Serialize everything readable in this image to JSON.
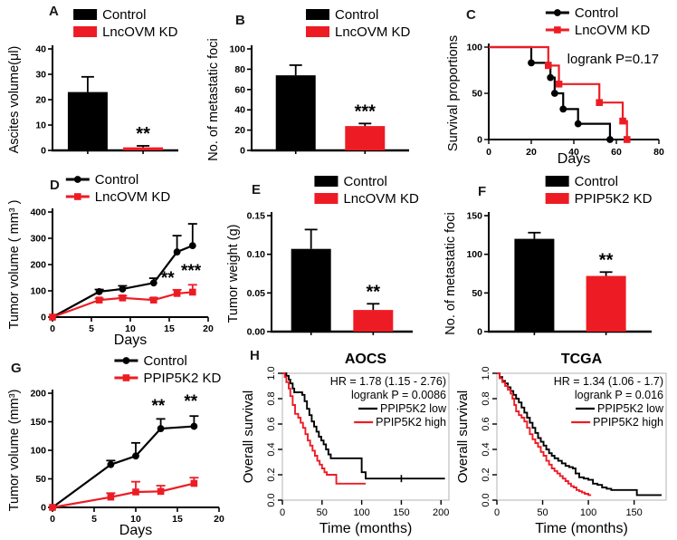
{
  "panels": [
    {
      "label": "A"
    },
    {
      "label": "B"
    },
    {
      "label": "C"
    },
    {
      "label": "D"
    },
    {
      "label": "E"
    },
    {
      "label": "F"
    },
    {
      "label": "G"
    },
    {
      "label": "H"
    },
    {
      "label": ""
    }
  ],
  "colors": {
    "control": "#000000",
    "knockdown": "#ed1c24"
  },
  "chart_data": [
    {
      "panel": "A",
      "type": "bar",
      "ylabel": "Ascites volume(μl)",
      "ylim": [
        0,
        40
      ],
      "yticks": [
        0,
        10,
        20,
        30,
        40
      ],
      "categories": [
        "Control",
        "LncOVM KD"
      ],
      "values": [
        23,
        1.2
      ],
      "errors": [
        6,
        0.6
      ],
      "bar_colors": [
        "#000000",
        "#ed1c24"
      ],
      "significance": [
        {
          "index": 1,
          "text": "**"
        }
      ],
      "legend_position": "top",
      "legend_x": 0.34
    },
    {
      "panel": "B",
      "type": "bar",
      "ylabel": "No. of metastatic foci",
      "ylim": [
        0,
        100
      ],
      "yticks": [
        0,
        20,
        40,
        60,
        80,
        100
      ],
      "categories": [
        "Control",
        "LncOVM KD"
      ],
      "values": [
        74,
        24
      ],
      "errors": [
        10,
        2.5
      ],
      "bar_colors": [
        "#000000",
        "#ed1c24"
      ],
      "significance": [
        {
          "index": 1,
          "text": "***"
        }
      ],
      "legend_position": "top",
      "legend_x": 0.44
    },
    {
      "panel": "C",
      "type": "step",
      "style": "graphpad",
      "xlabel": "Days",
      "ylabel": "Survival proportions",
      "xlim": [
        0,
        80
      ],
      "xticks": [
        0,
        20,
        40,
        60,
        80
      ],
      "ylim": [
        0,
        100
      ],
      "yticks": [
        0,
        50,
        100
      ],
      "annotation": "logrank P=0.17",
      "series": [
        {
          "name": "Control",
          "color": "#000000",
          "marker": "circle",
          "points": [
            [
              0,
              100
            ],
            [
              20,
              83
            ],
            [
              29,
              67
            ],
            [
              31,
              50
            ],
            [
              35,
              33
            ],
            [
              42,
              17
            ],
            [
              57,
              0
            ]
          ]
        },
        {
          "name": "LncOVM KD",
          "color": "#ed1c24",
          "marker": "square",
          "points": [
            [
              0,
              100
            ],
            [
              28,
              80
            ],
            [
              33,
              60
            ],
            [
              52,
              40
            ],
            [
              63,
              20
            ],
            [
              65,
              0
            ]
          ]
        }
      ],
      "legend_position": "top",
      "legend_x": 0.44
    },
    {
      "panel": "D",
      "type": "line",
      "xlabel": "Days",
      "ylabel": "Tumor volume ( mm³ )",
      "xlim": [
        0,
        20
      ],
      "xticks": [
        0,
        5,
        10,
        15,
        20
      ],
      "ylim": [
        0,
        400
      ],
      "yticks": [
        0,
        100,
        200,
        300,
        400
      ],
      "series": [
        {
          "name": "Control",
          "color": "#000000",
          "marker": "circle",
          "x": [
            0,
            6,
            9,
            13,
            16,
            18
          ],
          "y": [
            0,
            97,
            107,
            130,
            248,
            272
          ],
          "err": [
            0,
            8,
            12,
            18,
            62,
            83
          ]
        },
        {
          "name": "LncOVM KD",
          "color": "#ed1c24",
          "marker": "square",
          "x": [
            0,
            6,
            9,
            13,
            16,
            18
          ],
          "y": [
            0,
            65,
            73,
            65,
            90,
            95
          ],
          "err": [
            0,
            6,
            8,
            8,
            14,
            28
          ]
        }
      ],
      "annotations": [
        {
          "x": 14.8,
          "y": 128,
          "text": "**"
        },
        {
          "x": 17.8,
          "y": 155,
          "text": "***"
        }
      ],
      "legend_position": "top",
      "legend_x": 0.27
    },
    {
      "panel": "E",
      "type": "bar",
      "ylabel": "Tumor weight (g)",
      "ylim": [
        0,
        0.15
      ],
      "yticks": [
        0,
        0.05,
        0.1,
        0.15
      ],
      "ytick_decimals": 2,
      "categories": [
        "Control",
        "LncOVM KD"
      ],
      "values": [
        0.107,
        0.028
      ],
      "errors": [
        0.025,
        0.008
      ],
      "bar_colors": [
        "#000000",
        "#ed1c24"
      ],
      "significance": [
        {
          "index": 1,
          "text": "**"
        }
      ],
      "legend_position": "top",
      "legend_x": 0.42
    },
    {
      "panel": "F",
      "type": "bar",
      "ylabel": "No. of metastatic foci",
      "ylim": [
        0,
        150
      ],
      "yticks": [
        0,
        50,
        100,
        150
      ],
      "categories": [
        "Control",
        "PPIP5K2 KD"
      ],
      "values": [
        120,
        72
      ],
      "errors": [
        8,
        5
      ],
      "bar_colors": [
        "#000000",
        "#ed1c24"
      ],
      "significance": [
        {
          "index": 1,
          "text": "**"
        }
      ],
      "legend_position": "top",
      "legend_x": 0.44
    },
    {
      "panel": "G",
      "type": "line",
      "xlabel": "Days",
      "ylabel": "Tumor volume (mm³)",
      "xlim": [
        0,
        20
      ],
      "xticks": [
        0,
        5,
        10,
        15,
        20
      ],
      "ylim": [
        0,
        200
      ],
      "yticks": [
        0,
        50,
        100,
        150,
        200
      ],
      "series": [
        {
          "name": "Control",
          "color": "#000000",
          "marker": "circle",
          "x": [
            0,
            7,
            10,
            13,
            17
          ],
          "y": [
            0,
            75,
            90,
            138,
            142
          ],
          "err": [
            0,
            7,
            23,
            17,
            18
          ]
        },
        {
          "name": "PPIP5K2 KD",
          "color": "#ed1c24",
          "marker": "square",
          "x": [
            0,
            7,
            10,
            13,
            17
          ],
          "y": [
            0,
            18,
            27,
            28,
            42
          ],
          "err": [
            0,
            7,
            18,
            10,
            10
          ]
        }
      ],
      "annotations": [
        {
          "x": 12.7,
          "y": 168,
          "text": "**"
        },
        {
          "x": 16.6,
          "y": 176,
          "text": "**"
        }
      ],
      "legend_position": "top",
      "legend_x": 0.47
    },
    {
      "panel": "H",
      "type": "step",
      "style": "r",
      "title": "AOCS",
      "xlabel": "Time (months)",
      "ylabel": "Overall survival",
      "xlim": [
        0,
        210
      ],
      "xticks": [
        0,
        50,
        100,
        150,
        200
      ],
      "ylim": [
        0,
        1
      ],
      "yticks": [
        0,
        0.2,
        0.4,
        0.6,
        0.8,
        1
      ],
      "ytick_decimals": 1,
      "annotations": [
        "HR = 1.78 (1.15 - 2.76)",
        "logrank P = 0.0086"
      ],
      "series": [
        {
          "name": "PPIP5K2 low",
          "color": "#000000",
          "points": [
            [
              0,
              1
            ],
            [
              5,
              0.98
            ],
            [
              8,
              0.95
            ],
            [
              10,
              0.92
            ],
            [
              13,
              0.88
            ],
            [
              15,
              0.85
            ],
            [
              25,
              0.83
            ],
            [
              28,
              0.78
            ],
            [
              31,
              0.72
            ],
            [
              34,
              0.67
            ],
            [
              37,
              0.62
            ],
            [
              40,
              0.58
            ],
            [
              43,
              0.54
            ],
            [
              46,
              0.5
            ],
            [
              49,
              0.47
            ],
            [
              52,
              0.44
            ],
            [
              55,
              0.4
            ],
            [
              58,
              0.36
            ],
            [
              61,
              0.33
            ],
            [
              97,
              0.33
            ],
            [
              100,
              0.22
            ],
            [
              105,
              0.17
            ],
            [
              205,
              0.17
            ]
          ],
          "censors": [
            [
              150,
              0.17
            ]
          ]
        },
        {
          "name": "PPIP5K2 high",
          "color": "#ed1c24",
          "points": [
            [
              0,
              1
            ],
            [
              3,
              0.97
            ],
            [
              5,
              0.93
            ],
            [
              8,
              0.88
            ],
            [
              10,
              0.82
            ],
            [
              13,
              0.75
            ],
            [
              16,
              0.68
            ],
            [
              20,
              0.65
            ],
            [
              23,
              0.61
            ],
            [
              26,
              0.57
            ],
            [
              29,
              0.52
            ],
            [
              32,
              0.47
            ],
            [
              35,
              0.43
            ],
            [
              38,
              0.39
            ],
            [
              41,
              0.35
            ],
            [
              44,
              0.31
            ],
            [
              47,
              0.28
            ],
            [
              50,
              0.25
            ],
            [
              53,
              0.22
            ],
            [
              56,
              0.2
            ],
            [
              68,
              0.13
            ],
            [
              105,
              0.13
            ]
          ]
        }
      ]
    },
    {
      "panel": "H",
      "type": "step",
      "style": "r",
      "title": "TCGA",
      "xlabel": "Time (months)",
      "ylabel": "Overall survival",
      "xlim": [
        0,
        185
      ],
      "xticks": [
        0,
        50,
        100,
        150
      ],
      "ylim": [
        0,
        1
      ],
      "yticks": [
        0,
        0.2,
        0.4,
        0.6,
        0.8,
        1
      ],
      "ytick_decimals": 1,
      "annotations": [
        "HR = 1.34 (1.06 - 1.7)",
        "logrank P = 0.016"
      ],
      "series": [
        {
          "name": "PPIP5K2 low",
          "color": "#000000",
          "points": [
            [
              0,
              1
            ],
            [
              3,
              0.97
            ],
            [
              6,
              0.94
            ],
            [
              9,
              0.92
            ],
            [
              12,
              0.89
            ],
            [
              15,
              0.86
            ],
            [
              18,
              0.83
            ],
            [
              21,
              0.8
            ],
            [
              24,
              0.77
            ],
            [
              27,
              0.73
            ],
            [
              30,
              0.69
            ],
            [
              33,
              0.65
            ],
            [
              36,
              0.61
            ],
            [
              39,
              0.57
            ],
            [
              42,
              0.53
            ],
            [
              45,
              0.49
            ],
            [
              48,
              0.46
            ],
            [
              51,
              0.43
            ],
            [
              54,
              0.4
            ],
            [
              57,
              0.37
            ],
            [
              60,
              0.35
            ],
            [
              63,
              0.33
            ],
            [
              67,
              0.31
            ],
            [
              71,
              0.29
            ],
            [
              75,
              0.27
            ],
            [
              79,
              0.26
            ],
            [
              83,
              0.25
            ],
            [
              86,
              0.21
            ],
            [
              90,
              0.18
            ],
            [
              95,
              0.17
            ],
            [
              100,
              0.16
            ],
            [
              105,
              0.13
            ],
            [
              110,
              0.12
            ],
            [
              115,
              0.1
            ],
            [
              120,
              0.09
            ],
            [
              125,
              0.08
            ],
            [
              150,
              0.08
            ],
            [
              153,
              0.04
            ],
            [
              180,
              0.04
            ]
          ]
        },
        {
          "name": "PPIP5K2 high",
          "color": "#ed1c24",
          "points": [
            [
              0,
              1
            ],
            [
              3,
              0.96
            ],
            [
              6,
              0.93
            ],
            [
              9,
              0.9
            ],
            [
              12,
              0.87
            ],
            [
              15,
              0.84
            ],
            [
              17,
              0.8
            ],
            [
              19,
              0.75
            ],
            [
              21,
              0.7
            ],
            [
              24,
              0.67
            ],
            [
              27,
              0.65
            ],
            [
              30,
              0.62
            ],
            [
              33,
              0.57
            ],
            [
              36,
              0.52
            ],
            [
              39,
              0.48
            ],
            [
              42,
              0.45
            ],
            [
              45,
              0.42
            ],
            [
              48,
              0.38
            ],
            [
              51,
              0.35
            ],
            [
              54,
              0.31
            ],
            [
              57,
              0.28
            ],
            [
              60,
              0.25
            ],
            [
              63,
              0.23
            ],
            [
              66,
              0.21
            ],
            [
              69,
              0.19
            ],
            [
              72,
              0.17
            ],
            [
              75,
              0.15
            ],
            [
              78,
              0.13
            ],
            [
              81,
              0.11
            ],
            [
              84,
              0.1
            ],
            [
              87,
              0.08
            ],
            [
              90,
              0.07
            ],
            [
              93,
              0.06
            ],
            [
              96,
              0.05
            ],
            [
              100,
              0.04
            ],
            [
              103,
              0.04
            ]
          ]
        }
      ]
    }
  ]
}
